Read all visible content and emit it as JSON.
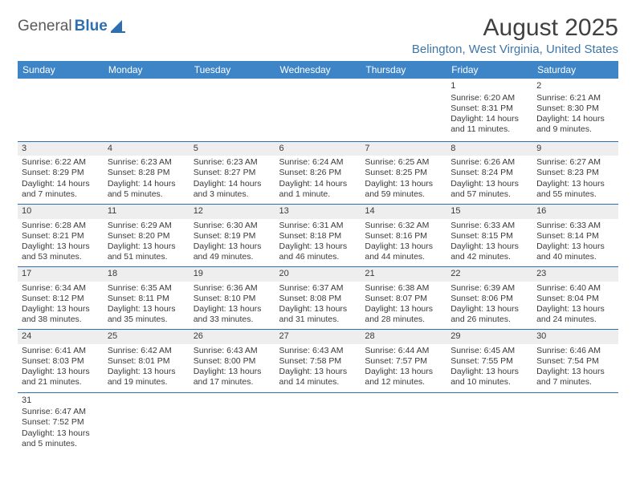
{
  "logo": {
    "part1": "General",
    "part2": "Blue"
  },
  "title": "August 2025",
  "location": "Belington, West Virginia, United States",
  "colors": {
    "header_bg": "#3d85c6",
    "header_text": "#ffffff",
    "accent": "#2f6fb0",
    "daynum_bg": "#eeeeee",
    "body_text": "#3a3a3a"
  },
  "dayHeaders": [
    "Sunday",
    "Monday",
    "Tuesday",
    "Wednesday",
    "Thursday",
    "Friday",
    "Saturday"
  ],
  "weeks": [
    [
      null,
      null,
      null,
      null,
      null,
      {
        "n": "1",
        "sunrise": "6:20 AM",
        "sunset": "8:31 PM",
        "daylight": "14 hours and 11 minutes."
      },
      {
        "n": "2",
        "sunrise": "6:21 AM",
        "sunset": "8:30 PM",
        "daylight": "14 hours and 9 minutes."
      }
    ],
    [
      {
        "n": "3",
        "sunrise": "6:22 AM",
        "sunset": "8:29 PM",
        "daylight": "14 hours and 7 minutes."
      },
      {
        "n": "4",
        "sunrise": "6:23 AM",
        "sunset": "8:28 PM",
        "daylight": "14 hours and 5 minutes."
      },
      {
        "n": "5",
        "sunrise": "6:23 AM",
        "sunset": "8:27 PM",
        "daylight": "14 hours and 3 minutes."
      },
      {
        "n": "6",
        "sunrise": "6:24 AM",
        "sunset": "8:26 PM",
        "daylight": "14 hours and 1 minute."
      },
      {
        "n": "7",
        "sunrise": "6:25 AM",
        "sunset": "8:25 PM",
        "daylight": "13 hours and 59 minutes."
      },
      {
        "n": "8",
        "sunrise": "6:26 AM",
        "sunset": "8:24 PM",
        "daylight": "13 hours and 57 minutes."
      },
      {
        "n": "9",
        "sunrise": "6:27 AM",
        "sunset": "8:23 PM",
        "daylight": "13 hours and 55 minutes."
      }
    ],
    [
      {
        "n": "10",
        "sunrise": "6:28 AM",
        "sunset": "8:21 PM",
        "daylight": "13 hours and 53 minutes."
      },
      {
        "n": "11",
        "sunrise": "6:29 AM",
        "sunset": "8:20 PM",
        "daylight": "13 hours and 51 minutes."
      },
      {
        "n": "12",
        "sunrise": "6:30 AM",
        "sunset": "8:19 PM",
        "daylight": "13 hours and 49 minutes."
      },
      {
        "n": "13",
        "sunrise": "6:31 AM",
        "sunset": "8:18 PM",
        "daylight": "13 hours and 46 minutes."
      },
      {
        "n": "14",
        "sunrise": "6:32 AM",
        "sunset": "8:16 PM",
        "daylight": "13 hours and 44 minutes."
      },
      {
        "n": "15",
        "sunrise": "6:33 AM",
        "sunset": "8:15 PM",
        "daylight": "13 hours and 42 minutes."
      },
      {
        "n": "16",
        "sunrise": "6:33 AM",
        "sunset": "8:14 PM",
        "daylight": "13 hours and 40 minutes."
      }
    ],
    [
      {
        "n": "17",
        "sunrise": "6:34 AM",
        "sunset": "8:12 PM",
        "daylight": "13 hours and 38 minutes."
      },
      {
        "n": "18",
        "sunrise": "6:35 AM",
        "sunset": "8:11 PM",
        "daylight": "13 hours and 35 minutes."
      },
      {
        "n": "19",
        "sunrise": "6:36 AM",
        "sunset": "8:10 PM",
        "daylight": "13 hours and 33 minutes."
      },
      {
        "n": "20",
        "sunrise": "6:37 AM",
        "sunset": "8:08 PM",
        "daylight": "13 hours and 31 minutes."
      },
      {
        "n": "21",
        "sunrise": "6:38 AM",
        "sunset": "8:07 PM",
        "daylight": "13 hours and 28 minutes."
      },
      {
        "n": "22",
        "sunrise": "6:39 AM",
        "sunset": "8:06 PM",
        "daylight": "13 hours and 26 minutes."
      },
      {
        "n": "23",
        "sunrise": "6:40 AM",
        "sunset": "8:04 PM",
        "daylight": "13 hours and 24 minutes."
      }
    ],
    [
      {
        "n": "24",
        "sunrise": "6:41 AM",
        "sunset": "8:03 PM",
        "daylight": "13 hours and 21 minutes."
      },
      {
        "n": "25",
        "sunrise": "6:42 AM",
        "sunset": "8:01 PM",
        "daylight": "13 hours and 19 minutes."
      },
      {
        "n": "26",
        "sunrise": "6:43 AM",
        "sunset": "8:00 PM",
        "daylight": "13 hours and 17 minutes."
      },
      {
        "n": "27",
        "sunrise": "6:43 AM",
        "sunset": "7:58 PM",
        "daylight": "13 hours and 14 minutes."
      },
      {
        "n": "28",
        "sunrise": "6:44 AM",
        "sunset": "7:57 PM",
        "daylight": "13 hours and 12 minutes."
      },
      {
        "n": "29",
        "sunrise": "6:45 AM",
        "sunset": "7:55 PM",
        "daylight": "13 hours and 10 minutes."
      },
      {
        "n": "30",
        "sunrise": "6:46 AM",
        "sunset": "7:54 PM",
        "daylight": "13 hours and 7 minutes."
      }
    ],
    [
      {
        "n": "31",
        "sunrise": "6:47 AM",
        "sunset": "7:52 PM",
        "daylight": "13 hours and 5 minutes."
      },
      null,
      null,
      null,
      null,
      null,
      null
    ]
  ],
  "labels": {
    "sunrise": "Sunrise:",
    "sunset": "Sunset:",
    "daylight": "Daylight:"
  }
}
